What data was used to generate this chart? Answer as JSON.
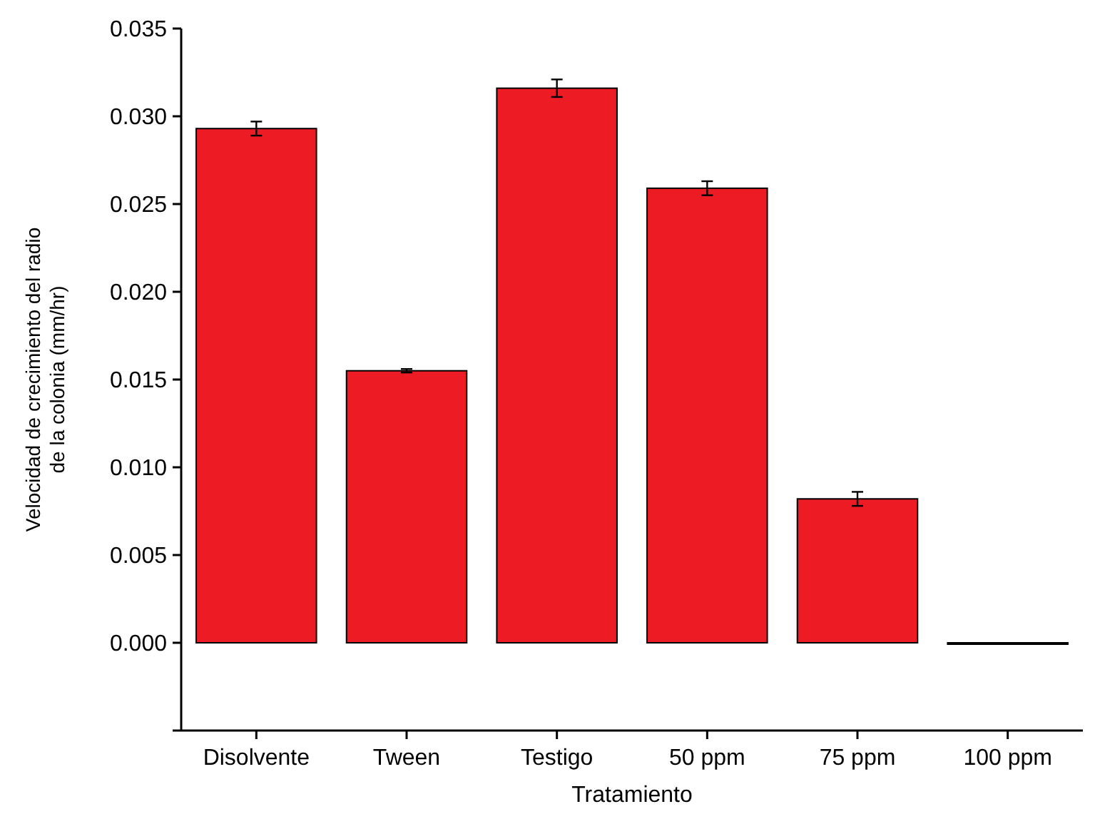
{
  "chart_data": {
    "type": "bar",
    "xlabel": "Tratamiento",
    "ylabel": "Velocidad de crecimiento del radio\nde la colonia (mm/hr)",
    "categories": [
      "Disolvente",
      "Tween",
      "Testigo",
      "50 ppm",
      "75 ppm",
      "100 ppm"
    ],
    "values": [
      0.0293,
      0.0155,
      0.0316,
      0.0259,
      0.0082,
      0.0
    ],
    "errors": [
      0.0004,
      0.0001,
      0.0005,
      0.0004,
      0.0004,
      null
    ],
    "color": "#ed1c24",
    "ylim": [
      -0.005,
      0.035
    ],
    "yticks": [
      {
        "value": -0.005,
        "label": null
      },
      {
        "value": 0,
        "label": "0.000"
      },
      {
        "value": 0.005,
        "label": "0.005"
      },
      {
        "value": 0.01,
        "label": "0.010"
      },
      {
        "value": 0.015,
        "label": "0.015"
      },
      {
        "value": 0.02,
        "label": "0.020"
      },
      {
        "value": 0.025,
        "label": "0.025"
      },
      {
        "value": 0.03,
        "label": "0.030"
      },
      {
        "value": 0.035,
        "label": "0.035"
      }
    ],
    "grid": false
  }
}
